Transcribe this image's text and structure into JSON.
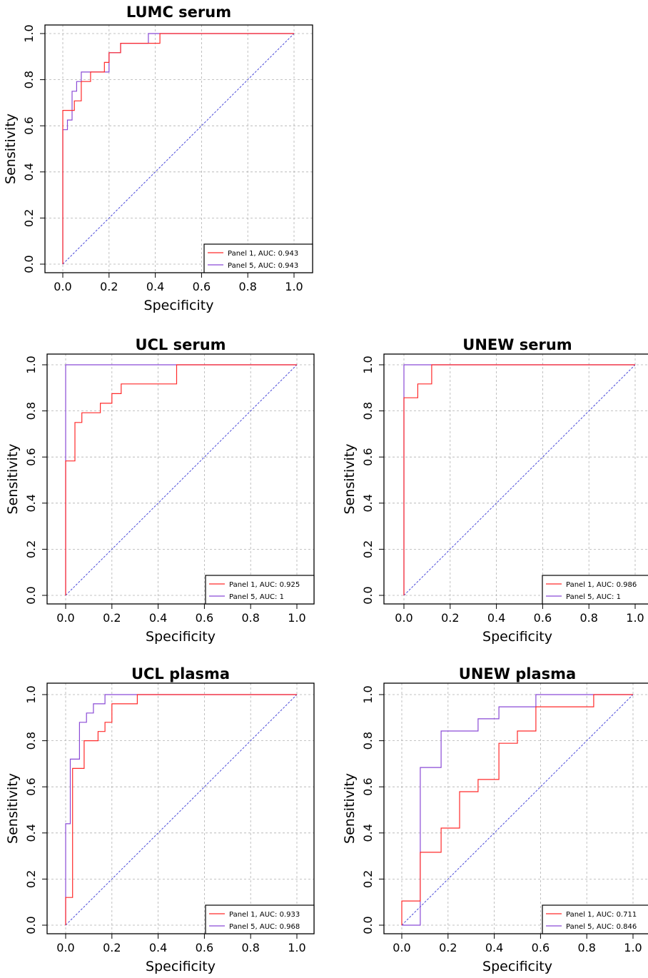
{
  "colors": {
    "panel1": "#ff2a2a",
    "panel5": "#8a4ad6",
    "diagonal": "#3a3ad6",
    "grid": "#b0b0b0"
  },
  "chart_data": [
    {
      "type": "line",
      "title": "LUMC serum",
      "xlabel": "Specificity",
      "ylabel": "Sensitivity",
      "xlim": [
        0,
        1
      ],
      "ylim": [
        0,
        1
      ],
      "xticks": [
        "0.0",
        "0.2",
        "0.4",
        "0.6",
        "0.8",
        "1.0"
      ],
      "yticks": [
        "0.0",
        "0.2",
        "0.4",
        "0.6",
        "0.8",
        "1.0"
      ],
      "grid": true,
      "legend_position": "bottom-right",
      "series": [
        {
          "name": "Panel 1, AUC: 0.943",
          "x": [
            0,
            0,
            0.05,
            0.05,
            0.08,
            0.08,
            0.12,
            0.12,
            0.18,
            0.18,
            0.2,
            0.2,
            0.25,
            0.25,
            0.42,
            0.42,
            1
          ],
          "y": [
            0,
            0.667,
            0.667,
            0.708,
            0.708,
            0.792,
            0.792,
            0.833,
            0.833,
            0.875,
            0.875,
            0.917,
            0.917,
            0.958,
            0.958,
            1,
            1
          ]
        },
        {
          "name": "Panel 5, AUC: 0.943",
          "x": [
            0,
            0,
            0.02,
            0.02,
            0.04,
            0.04,
            0.06,
            0.06,
            0.08,
            0.08,
            0.1,
            0.1,
            0.2,
            0.2,
            0.25,
            0.25,
            0.37,
            0.37,
            1
          ],
          "y": [
            0,
            0.583,
            0.583,
            0.625,
            0.625,
            0.75,
            0.75,
            0.792,
            0.792,
            0.833,
            0.833,
            0.833,
            0.833,
            0.917,
            0.917,
            0.958,
            0.958,
            1,
            1
          ]
        }
      ]
    },
    {
      "type": "line",
      "title": "UCL serum",
      "xlabel": "Specificity",
      "ylabel": "Sensitivity",
      "xlim": [
        0,
        1
      ],
      "ylim": [
        0,
        1
      ],
      "xticks": [
        "0.0",
        "0.2",
        "0.4",
        "0.6",
        "0.8",
        "1.0"
      ],
      "yticks": [
        "0.0",
        "0.2",
        "0.4",
        "0.6",
        "0.8",
        "1.0"
      ],
      "grid": true,
      "legend_position": "bottom-right",
      "series": [
        {
          "name": "Panel 1, AUC: 0.925",
          "x": [
            0,
            0,
            0.04,
            0.04,
            0.07,
            0.07,
            0.15,
            0.15,
            0.2,
            0.2,
            0.24,
            0.24,
            0.48,
            0.48,
            1
          ],
          "y": [
            0,
            0.583,
            0.583,
            0.75,
            0.75,
            0.792,
            0.792,
            0.833,
            0.833,
            0.875,
            0.875,
            0.917,
            0.917,
            1,
            1
          ]
        },
        {
          "name": "Panel 5, AUC: 1",
          "x": [
            0,
            0,
            1
          ],
          "y": [
            0,
            1,
            1
          ]
        }
      ]
    },
    {
      "type": "line",
      "title": "UNEW serum",
      "xlabel": "Specificity",
      "ylabel": "Sensitivity",
      "xlim": [
        0,
        1
      ],
      "ylim": [
        0,
        1
      ],
      "xticks": [
        "0.0",
        "0.2",
        "0.4",
        "0.6",
        "0.8",
        "1.0"
      ],
      "yticks": [
        "0.0",
        "0.2",
        "0.4",
        "0.6",
        "0.8",
        "1.0"
      ],
      "grid": true,
      "legend_position": "bottom-right",
      "series": [
        {
          "name": "Panel 1, AUC: 0.986",
          "x": [
            0,
            0,
            0.06,
            0.06,
            0.12,
            0.12,
            1
          ],
          "y": [
            0,
            0.857,
            0.857,
            0.917,
            0.917,
            1,
            1
          ]
        },
        {
          "name": "Panel 5, AUC: 1",
          "x": [
            0,
            0,
            1
          ],
          "y": [
            0,
            1,
            1
          ]
        }
      ]
    },
    {
      "type": "line",
      "title": "UCL plasma",
      "xlabel": "Specificity",
      "ylabel": "Sensitivity",
      "xlim": [
        0,
        1
      ],
      "ylim": [
        0,
        1
      ],
      "xticks": [
        "0.0",
        "0.2",
        "0.4",
        "0.6",
        "0.8",
        "1.0"
      ],
      "yticks": [
        "0.0",
        "0.2",
        "0.4",
        "0.6",
        "0.8",
        "1.0"
      ],
      "grid": true,
      "legend_position": "bottom-right",
      "series": [
        {
          "name": "Panel 1, AUC: 0.933",
          "x": [
            0,
            0,
            0.03,
            0.03,
            0.08,
            0.08,
            0.14,
            0.14,
            0.17,
            0.17,
            0.2,
            0.2,
            0.31,
            0.31,
            1
          ],
          "y": [
            0,
            0.12,
            0.12,
            0.68,
            0.68,
            0.8,
            0.8,
            0.84,
            0.84,
            0.88,
            0.88,
            0.96,
            0.96,
            1,
            1
          ]
        },
        {
          "name": "Panel 5, AUC: 0.968",
          "x": [
            0,
            0,
            0.02,
            0.02,
            0.06,
            0.06,
            0.09,
            0.09,
            0.12,
            0.12,
            0.17,
            0.17,
            1
          ],
          "y": [
            0,
            0.44,
            0.44,
            0.72,
            0.72,
            0.88,
            0.88,
            0.92,
            0.92,
            0.96,
            0.96,
            1,
            1
          ]
        }
      ]
    },
    {
      "type": "line",
      "title": "UNEW plasma",
      "xlabel": "Specificity",
      "ylabel": "Sensitivity",
      "xlim": [
        0,
        1
      ],
      "ylim": [
        0,
        1
      ],
      "xticks": [
        "0.0",
        "0.2",
        "0.4",
        "0.6",
        "0.8",
        "1.0"
      ],
      "yticks": [
        "0.0",
        "0.2",
        "0.4",
        "0.6",
        "0.8",
        "1.0"
      ],
      "grid": true,
      "legend_position": "bottom-right",
      "series": [
        {
          "name": "Panel 1, AUC: 0.711",
          "x": [
            0,
            0,
            0.08,
            0.08,
            0.17,
            0.17,
            0.25,
            0.25,
            0.33,
            0.33,
            0.42,
            0.42,
            0.5,
            0.5,
            0.58,
            0.58,
            0.83,
            0.83,
            1
          ],
          "y": [
            0,
            0.105,
            0.105,
            0.316,
            0.316,
            0.421,
            0.421,
            0.579,
            0.579,
            0.632,
            0.632,
            0.789,
            0.789,
            0.842,
            0.842,
            0.947,
            0.947,
            1,
            1
          ]
        },
        {
          "name": "Panel 5, AUC: 0.846",
          "x": [
            0,
            0.08,
            0.08,
            0.17,
            0.17,
            0.33,
            0.33,
            0.42,
            0.42,
            0.58,
            0.58,
            1
          ],
          "y": [
            0,
            0,
            0.684,
            0.684,
            0.842,
            0.842,
            0.895,
            0.895,
            0.947,
            0.947,
            1,
            1
          ]
        }
      ]
    }
  ]
}
